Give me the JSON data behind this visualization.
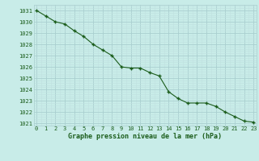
{
  "hours": [
    0,
    1,
    2,
    3,
    4,
    5,
    6,
    7,
    8,
    9,
    10,
    11,
    12,
    13,
    14,
    15,
    16,
    17,
    18,
    19,
    20,
    21,
    22,
    23
  ],
  "pressure": [
    1031.0,
    1030.5,
    1030.0,
    1029.8,
    1029.2,
    1028.7,
    1028.0,
    1027.5,
    1027.0,
    1026.0,
    1025.9,
    1025.9,
    1025.5,
    1025.2,
    1023.8,
    1023.2,
    1022.8,
    1022.8,
    1022.8,
    1022.5,
    1022.0,
    1021.6,
    1021.2,
    1021.1
  ],
  "line_color": "#1a5c1a",
  "marker_color": "#1a5c1a",
  "bg_color": "#c8ece8",
  "grid_major_color": "#aacfcf",
  "grid_minor_color": "#c0e0e0",
  "title": "Graphe pression niveau de la mer (hPa)",
  "title_color": "#1a5c1a",
  "ylim": [
    1020.8,
    1031.5
  ],
  "yticks": [
    1021,
    1022,
    1023,
    1024,
    1025,
    1026,
    1027,
    1028,
    1029,
    1030,
    1031
  ],
  "xticks": [
    0,
    1,
    2,
    3,
    4,
    5,
    6,
    7,
    8,
    9,
    10,
    11,
    12,
    13,
    14,
    15,
    16,
    17,
    18,
    19,
    20,
    21,
    22,
    23
  ]
}
